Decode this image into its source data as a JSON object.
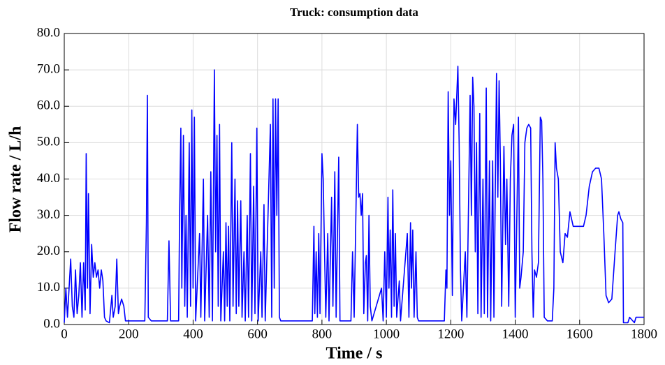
{
  "chart_data": {
    "type": "line",
    "title": "Truck: consumption data",
    "x_label": "Time / s",
    "y_label": "Flow rate / L/h",
    "x": [
      0,
      5,
      10,
      15,
      20,
      25,
      30,
      35,
      40,
      45,
      50,
      55,
      60,
      65,
      68,
      72,
      75,
      80,
      85,
      90,
      95,
      100,
      105,
      110,
      115,
      120,
      125,
      130,
      140,
      148,
      152,
      158,
      163,
      168,
      172,
      178,
      185,
      190,
      250,
      255,
      258,
      261,
      270,
      320,
      325,
      330,
      355,
      358,
      362,
      365,
      370,
      374,
      378,
      382,
      388,
      392,
      396,
      400,
      404,
      408,
      420,
      424,
      432,
      436,
      445,
      450,
      455,
      460,
      466,
      470,
      474,
      478,
      482,
      486,
      494,
      498,
      502,
      506,
      510,
      514,
      520,
      524,
      530,
      534,
      538,
      542,
      548,
      552,
      558,
      562,
      568,
      572,
      578,
      582,
      588,
      592,
      598,
      602,
      610,
      614,
      620,
      624,
      640,
      644,
      648,
      652,
      656,
      660,
      664,
      668,
      672,
      770,
      775,
      778,
      782,
      786,
      790,
      794,
      800,
      804,
      808,
      812,
      818,
      822,
      830,
      834,
      840,
      844,
      852,
      856,
      890,
      895,
      900,
      905,
      910,
      914,
      918,
      922,
      926,
      930,
      935,
      938,
      942,
      946,
      950,
      955,
      985,
      990,
      995,
      1000,
      1005,
      1008,
      1012,
      1016,
      1020,
      1024,
      1028,
      1032,
      1040,
      1044,
      1065,
      1070,
      1075,
      1078,
      1082,
      1086,
      1092,
      1096,
      1100,
      1180,
      1185,
      1188,
      1192,
      1196,
      1200,
      1205,
      1210,
      1215,
      1222,
      1226,
      1230,
      1234,
      1245,
      1250,
      1260,
      1264,
      1268,
      1272,
      1276,
      1280,
      1284,
      1290,
      1294,
      1300,
      1304,
      1310,
      1314,
      1320,
      1324,
      1330,
      1334,
      1342,
      1346,
      1350,
      1354,
      1358,
      1365,
      1370,
      1374,
      1380,
      1385,
      1390,
      1395,
      1400,
      1410,
      1414,
      1418,
      1425,
      1430,
      1436,
      1442,
      1448,
      1452,
      1456,
      1460,
      1466,
      1472,
      1478,
      1482,
      1486,
      1490,
      1500,
      1515,
      1520,
      1524,
      1528,
      1534,
      1540,
      1548,
      1555,
      1562,
      1570,
      1580,
      1600,
      1612,
      1620,
      1630,
      1640,
      1650,
      1660,
      1668,
      1675,
      1682,
      1690,
      1700,
      1710,
      1718,
      1722,
      1728,
      1734,
      1736,
      1750,
      1755,
      1770,
      1775,
      1800
    ],
    "values": [
      0.5,
      10,
      2,
      10,
      18,
      5,
      2,
      15,
      3,
      8,
      17,
      2,
      17,
      4,
      47,
      10,
      36,
      3,
      22,
      13,
      17,
      13,
      15,
      10,
      15,
      12,
      2,
      1,
      0.5,
      8,
      2,
      5,
      18,
      3,
      5,
      7,
      5,
      1,
      1,
      28,
      63,
      2,
      1,
      1,
      23,
      1,
      1,
      30,
      54,
      10,
      52,
      5,
      30,
      2,
      50,
      5,
      59,
      10,
      57,
      1,
      25,
      2,
      40,
      1,
      30,
      2,
      42,
      1,
      70,
      20,
      52,
      5,
      55,
      1,
      20,
      1,
      28,
      5,
      27,
      1,
      50,
      5,
      40,
      3,
      34,
      5,
      34,
      2,
      20,
      1,
      30,
      2,
      47,
      1,
      38,
      3,
      54,
      1,
      20,
      2,
      33,
      1,
      55,
      2,
      62,
      10,
      62,
      30,
      62,
      2,
      1,
      1,
      27,
      3,
      20,
      2,
      25,
      3,
      47,
      40,
      20,
      2,
      25,
      1,
      35,
      5,
      42,
      2,
      46,
      1,
      1,
      20,
      2,
      28,
      55,
      35,
      36,
      30,
      36,
      3,
      17,
      19,
      1,
      30,
      5,
      1,
      10,
      1,
      20,
      2,
      35,
      10,
      26,
      2,
      37,
      5,
      25,
      2,
      12,
      1,
      25,
      2,
      28,
      10,
      26,
      2,
      20,
      2,
      1,
      1,
      15,
      10,
      64,
      30,
      45,
      8,
      62,
      55,
      71,
      50,
      15,
      1,
      20,
      2,
      63,
      30,
      68,
      60,
      20,
      50,
      3,
      58,
      2,
      40,
      3,
      65,
      2,
      45,
      1,
      45,
      2,
      69,
      35,
      67,
      45,
      5,
      49,
      22,
      40,
      5,
      40,
      52,
      55,
      2,
      57,
      10,
      13,
      20,
      50,
      54,
      55,
      54,
      20,
      2,
      15,
      13,
      17,
      57,
      56,
      40,
      2,
      1,
      1,
      10,
      50,
      43,
      40,
      20,
      17,
      25,
      24,
      31,
      27,
      27,
      27,
      30,
      38,
      42,
      43,
      43,
      40,
      25,
      8,
      6,
      7,
      20,
      30,
      31,
      29,
      28,
      0.5,
      0.5,
      2,
      0.5,
      2,
      2
    ],
    "color": "#0000ff",
    "xlim": [
      0,
      1800
    ],
    "xticks": [
      0,
      200,
      400,
      600,
      800,
      1000,
      1200,
      1400,
      1600,
      1800
    ],
    "ylim": [
      0,
      80
    ],
    "yticks": [
      {
        "value": 0,
        "label": "0.0"
      },
      {
        "value": 10,
        "label": "10.0"
      },
      {
        "value": 20,
        "label": "20.0"
      },
      {
        "value": 30,
        "label": "30.0"
      },
      {
        "value": 40,
        "label": "40.0"
      },
      {
        "value": 50,
        "label": "50.0"
      },
      {
        "value": 60,
        "label": "60.0"
      },
      {
        "value": 70,
        "label": "70.0"
      },
      {
        "value": 80,
        "label": "80.0"
      }
    ],
    "grid": true
  }
}
